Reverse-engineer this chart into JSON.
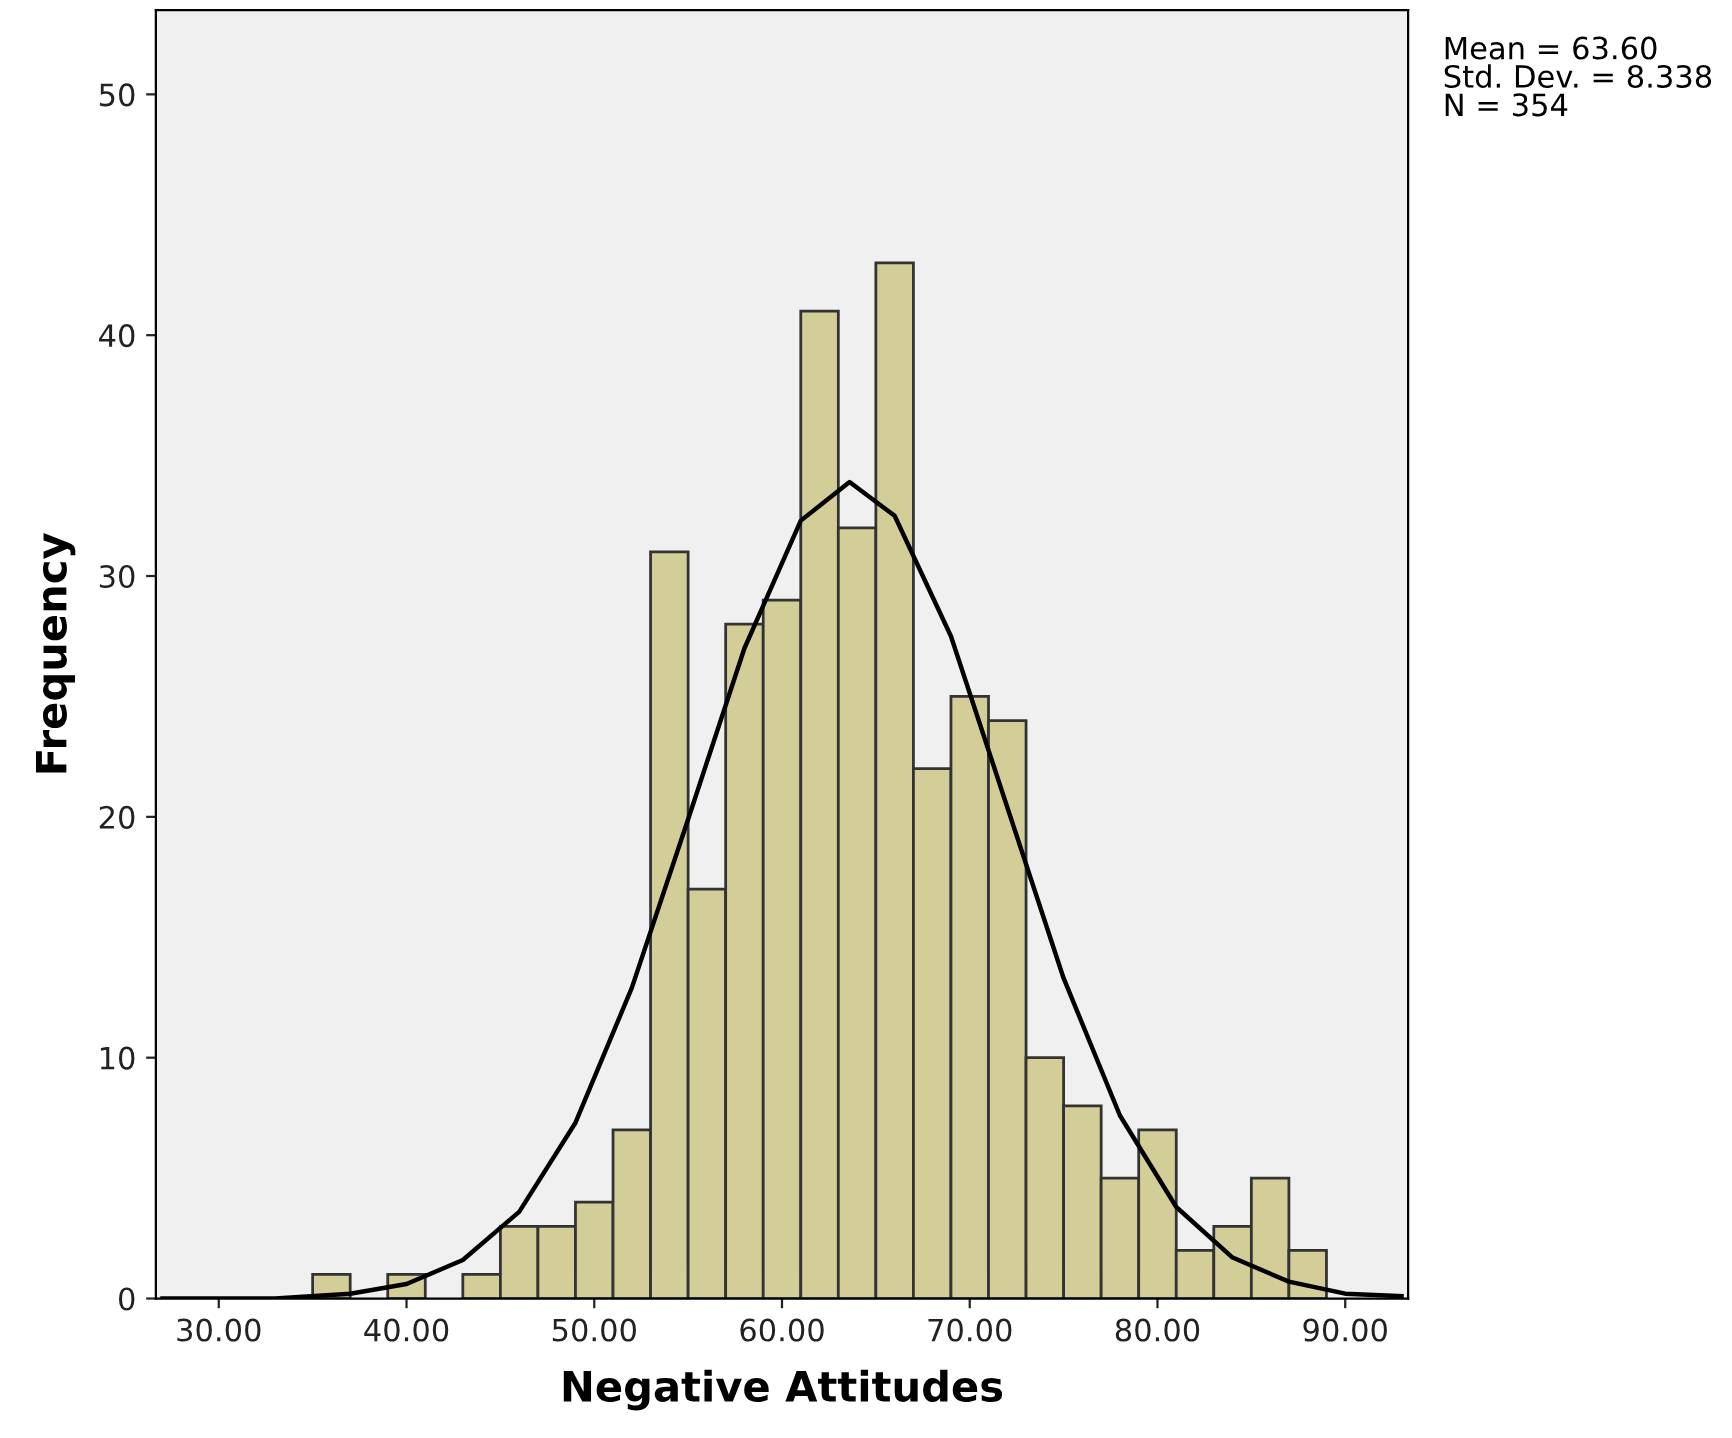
{
  "chart_data": {
    "type": "histogram",
    "xlabel": "Negative Attitudes",
    "ylabel": "Frequency",
    "bins": [
      35,
      37,
      39,
      41,
      43,
      45,
      47,
      49,
      51,
      53,
      55,
      57,
      59,
      61,
      63,
      65,
      67,
      69,
      71,
      73,
      75,
      77,
      79,
      81,
      83,
      85,
      87,
      89
    ],
    "values": [
      1,
      0,
      1,
      0,
      1,
      3,
      3,
      4,
      7,
      31,
      17,
      28,
      29,
      41,
      32,
      43,
      22,
      25,
      24,
      10,
      8,
      5,
      7,
      2,
      3,
      5,
      2
    ],
    "color": "#d3ce97",
    "series": [
      {
        "type": "line",
        "color": "#000000",
        "x": [
          27,
          33,
          37,
          40,
          43,
          46,
          49,
          52,
          55,
          58,
          61,
          63.6,
          66,
          69,
          72,
          75,
          78,
          81,
          84,
          87,
          90,
          93
        ],
        "values": [
          0.0,
          0.0,
          0.2,
          0.6,
          1.6,
          3.6,
          7.3,
          12.9,
          19.9,
          27.0,
          32.3,
          33.9,
          32.5,
          27.5,
          20.4,
          13.3,
          7.6,
          3.8,
          1.7,
          0.7,
          0.2,
          0.1
        ]
      }
    ],
    "xlim": [
      26.65,
      93.35
    ],
    "ylim": [
      0,
      53.5
    ],
    "xticks": [
      {
        "value": 30,
        "label": "30.00"
      },
      {
        "value": 40,
        "label": "40.00"
      },
      {
        "value": 50,
        "label": "50.00"
      },
      {
        "value": 60,
        "label": "60.00"
      },
      {
        "value": 70,
        "label": "70.00"
      },
      {
        "value": 80,
        "label": "80.00"
      },
      {
        "value": 90,
        "label": "90.00"
      }
    ],
    "yticks": [
      0,
      10,
      20,
      30,
      40,
      50
    ],
    "grid": false,
    "annotations": [
      "Mean = 63.60\nStd. Dev. = 8.338\nN = 354"
    ]
  }
}
